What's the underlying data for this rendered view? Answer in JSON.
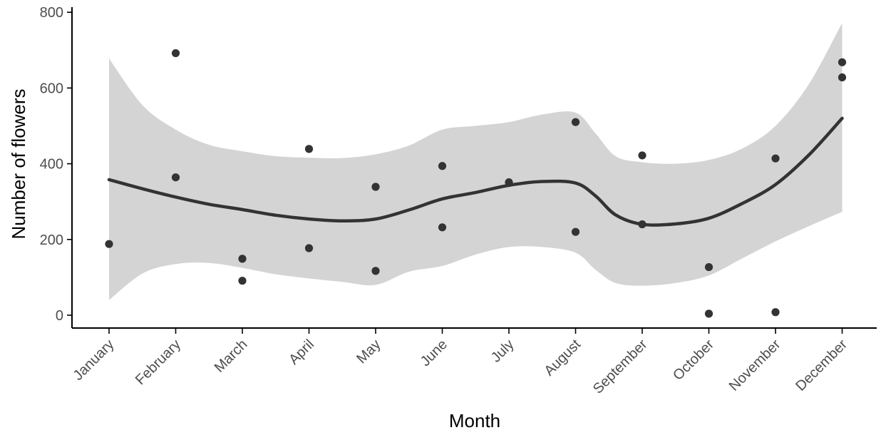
{
  "chart_data": {
    "type": "scatter",
    "title": "",
    "xlabel": "Month",
    "ylabel": "Number of flowers",
    "categories": [
      "January",
      "February",
      "March",
      "April",
      "May",
      "June",
      "July",
      "August",
      "September",
      "October",
      "November",
      "December"
    ],
    "yticks": [
      0,
      200,
      400,
      600,
      800
    ],
    "ylim": [
      -35,
      800
    ],
    "grid": false,
    "legend": "none",
    "points": [
      {
        "month": "January",
        "value": 188
      },
      {
        "month": "February",
        "value": 692
      },
      {
        "month": "February",
        "value": 364
      },
      {
        "month": "March",
        "value": 149
      },
      {
        "month": "March",
        "value": 91
      },
      {
        "month": "April",
        "value": 439
      },
      {
        "month": "April",
        "value": 177
      },
      {
        "month": "May",
        "value": 339
      },
      {
        "month": "May",
        "value": 117
      },
      {
        "month": "June",
        "value": 394
      },
      {
        "month": "June",
        "value": 232
      },
      {
        "month": "July",
        "value": 351
      },
      {
        "month": "August",
        "value": 510
      },
      {
        "month": "August",
        "value": 220
      },
      {
        "month": "September",
        "value": 422
      },
      {
        "month": "September",
        "value": 240
      },
      {
        "month": "October",
        "value": 127
      },
      {
        "month": "October",
        "value": 4
      },
      {
        "month": "November",
        "value": 414
      },
      {
        "month": "November",
        "value": 8
      },
      {
        "month": "December",
        "value": 668
      },
      {
        "month": "December",
        "value": 628
      }
    ],
    "smooth": {
      "method": "loess",
      "x": [
        1,
        1.5,
        2,
        2.5,
        3,
        3.5,
        4,
        4.5,
        5,
        5.5,
        6,
        6.5,
        7,
        7.5,
        8,
        8.3,
        8.6,
        9,
        9.5,
        10,
        10.5,
        11,
        11.5,
        12
      ],
      "fit": [
        358,
        334,
        312,
        293,
        279,
        264,
        254,
        249,
        254,
        278,
        307,
        324,
        343,
        353,
        349,
        315,
        265,
        240,
        241,
        256,
        295,
        345,
        423,
        520
      ],
      "lower": [
        40,
        110,
        135,
        138,
        125,
        108,
        97,
        88,
        80,
        115,
        130,
        160,
        180,
        180,
        165,
        120,
        85,
        78,
        85,
        105,
        150,
        195,
        235,
        273
      ],
      "upper": [
        678,
        555,
        490,
        450,
        433,
        420,
        416,
        415,
        425,
        448,
        490,
        500,
        510,
        530,
        535,
        480,
        420,
        404,
        400,
        410,
        440,
        500,
        610,
        772
      ]
    },
    "colors": {
      "point": "#333333",
      "line": "#333333",
      "ribbon": "#d4d4d4",
      "axis": "#000000",
      "tick_text": "#4d4d4d"
    }
  }
}
